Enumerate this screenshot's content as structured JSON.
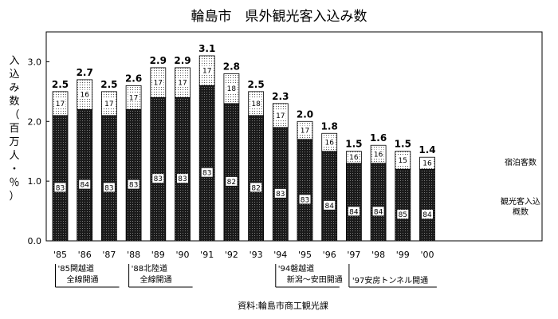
{
  "chart_data": {
    "type": "bar",
    "stacked": true,
    "title": "輪島市　県外観光客入込み数",
    "ylabel": "入込み数（百万人・％）",
    "ylim": [
      0,
      3.5
    ],
    "yticks": [
      "0.0",
      "1.0",
      "2.0",
      "3.0"
    ],
    "ytick_values": [
      0,
      1,
      2,
      3
    ],
    "categories": [
      "'85",
      "'86",
      "'87",
      "'88",
      "'89",
      "'90",
      "'91",
      "'92",
      "'93",
      "'94",
      "'95",
      "'96",
      "'97",
      "'98",
      "'99",
      "'00"
    ],
    "totals": [
      2.5,
      2.7,
      2.5,
      2.6,
      2.9,
      2.9,
      3.1,
      2.8,
      2.5,
      2.3,
      2.0,
      1.8,
      1.5,
      1.6,
      1.5,
      1.4
    ],
    "total_labels": [
      "2.5",
      "2.7",
      "2.5",
      "2.6",
      "2.9",
      "2.9",
      "3.1",
      "2.8",
      "2.5",
      "2.3",
      "2.0",
      "1.8",
      "1.5",
      "1.6",
      "1.5",
      "1.4"
    ],
    "series": [
      {
        "name": "観光客入込\n概数",
        "values": [
          2.1,
          2.2,
          2.1,
          2.2,
          2.4,
          2.4,
          2.6,
          2.3,
          2.1,
          1.9,
          1.7,
          1.5,
          1.3,
          1.3,
          1.2,
          1.2
        ],
        "percent_labels": [
          "83",
          "84",
          "83",
          "83",
          "83",
          "83",
          "83",
          "82",
          "82",
          "83",
          "83",
          "84",
          "84",
          "84",
          "85",
          "84"
        ],
        "fill": "dark-dotted"
      },
      {
        "name": "宿泊客数",
        "values": [
          0.4,
          0.5,
          0.4,
          0.4,
          0.5,
          0.5,
          0.5,
          0.5,
          0.4,
          0.4,
          0.3,
          0.3,
          0.2,
          0.3,
          0.3,
          0.2
        ],
        "percent_labels": [
          "17",
          "16",
          "17",
          "17",
          "17",
          "17",
          "17",
          "18",
          "18",
          "17",
          "17",
          "16",
          "16",
          "16",
          "15",
          "16"
        ],
        "fill": "light-dotted"
      }
    ],
    "legend": [
      {
        "label": "宿泊客数",
        "series": 1
      },
      {
        "label": "観光客入込",
        "series": 0
      },
      {
        "label": "概数",
        "series": 0
      }
    ],
    "annotations": [
      {
        "category": "'85",
        "lines": [
          "'85関越道",
          "全線開通"
        ]
      },
      {
        "category": "'88",
        "lines": [
          "'88北陸道",
          "全線開通"
        ]
      },
      {
        "category": "'94",
        "lines": [
          "'94磐越道",
          "新潟～安田開通"
        ]
      },
      {
        "category": "'97",
        "lines": [
          "'97安房トンネル開通"
        ]
      }
    ],
    "grid": false,
    "source": "資料:輪島市商工観光課"
  },
  "colors": {
    "dark_bar": "#1a1a1a",
    "light_bar": "#ffffff",
    "axis": "#000000"
  }
}
